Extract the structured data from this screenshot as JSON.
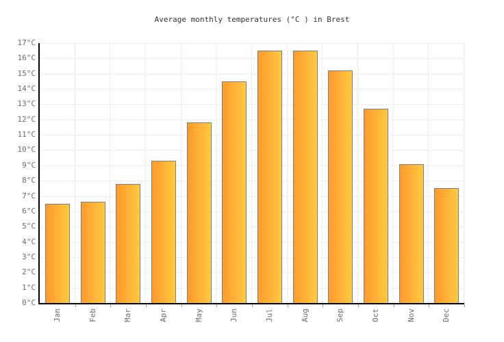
{
  "chart_data": {
    "type": "bar",
    "title": "Average monthly temperatures (°C ) in Brest",
    "categories": [
      "Jan",
      "Feb",
      "Mar",
      "Apr",
      "May",
      "Jun",
      "Jul",
      "Aug",
      "Sep",
      "Oct",
      "Nov",
      "Dec"
    ],
    "values": [
      6.5,
      6.6,
      7.8,
      9.3,
      11.8,
      14.5,
      16.5,
      16.5,
      15.2,
      12.7,
      9.1,
      7.5
    ],
    "xlabel": "",
    "ylabel": "",
    "ylim": [
      0,
      17
    ],
    "ytick_step": 1,
    "ytick_suffix": "°C",
    "grid": true,
    "legend": false,
    "colors": {
      "bar_gradient_left": "#FF9A2E",
      "bar_gradient_right": "#FFC93F",
      "bar_border": "#7D7D7D",
      "axis": "#000000",
      "gridline": "#EDEDED",
      "tick_label": "#6B6B6B",
      "title_text": "#333333",
      "background": "#FFFFFF"
    }
  }
}
